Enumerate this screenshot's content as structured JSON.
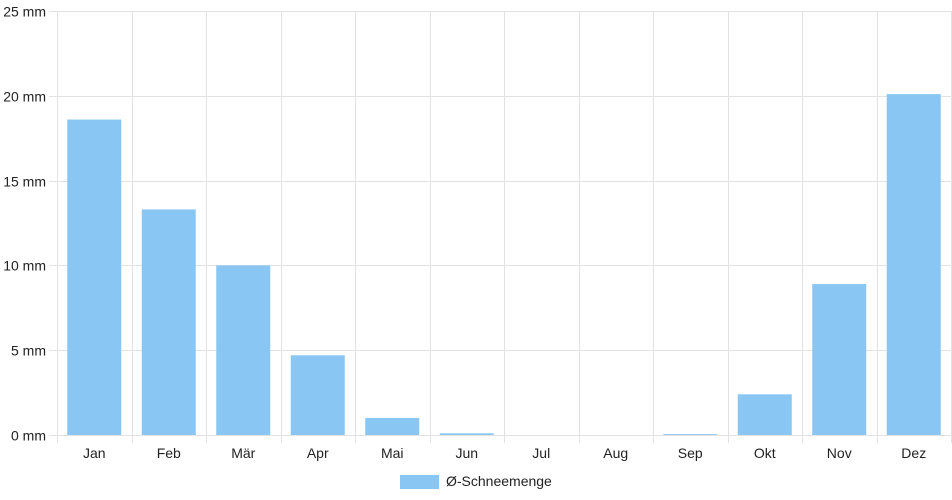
{
  "chart_data": {
    "type": "bar",
    "categories": [
      "Jan",
      "Feb",
      "Mär",
      "Apr",
      "Mai",
      "Jun",
      "Jul",
      "Aug",
      "Sep",
      "Okt",
      "Nov",
      "Dez"
    ],
    "series": [
      {
        "name": "Ø-Schneemenge",
        "color": "#89c6f3",
        "values": [
          18.6,
          13.3,
          10.0,
          4.7,
          1.0,
          0.1,
          0,
          0,
          0.05,
          2.4,
          8.9,
          20.1
        ]
      }
    ],
    "y_tick_labels": [
      "0 mm",
      "5 mm",
      "10 mm",
      "15 mm",
      "20 mm",
      "25 mm"
    ],
    "ylim": [
      0,
      25
    ],
    "grid": true,
    "legend_position": "bottom-center"
  }
}
